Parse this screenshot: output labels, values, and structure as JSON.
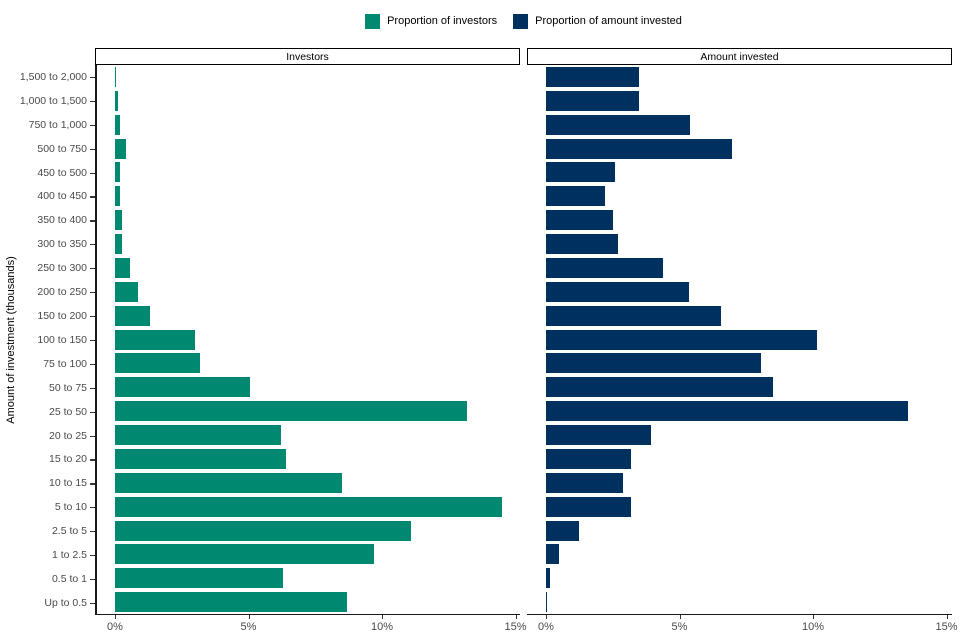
{
  "y_axis_title": "Amount of investment (thousands)",
  "legend": [
    {
      "label": "Proportion of investors",
      "color": "#008970"
    },
    {
      "label": "Proportion of amount invested",
      "color": "#00305E"
    }
  ],
  "panels": [
    {
      "title": "Investors"
    },
    {
      "title": "Amount invested"
    }
  ],
  "chart_data": {
    "type": "bar",
    "orientation": "horizontal",
    "title": "",
    "xlabel": "",
    "ylabel": "Amount of investment (thousands)",
    "grid": false,
    "legend_position": "top-center",
    "facets": [
      "Investors",
      "Amount invested"
    ],
    "x_axis": {
      "ticks_percent": [
        0,
        5,
        10,
        15
      ],
      "tick_labels": [
        "0%",
        "5%",
        "10%",
        "15%"
      ],
      "range_percent": [
        0,
        15.2
      ]
    },
    "categories_top_to_bottom": [
      "1,500 to 2,000",
      "1,000 to 1,500",
      "750 to 1,000",
      "500 to 750",
      "450 to 500",
      "400 to 450",
      "350 to 400",
      "300 to 350",
      "250 to 300",
      "200 to 250",
      "150 to 200",
      "100 to 150",
      "75 to 100",
      "50 to 75",
      "25 to 50",
      "20 to 25",
      "15 to 20",
      "10 to 15",
      "5 to 10",
      "2.5 to 5",
      "1 to 2.5",
      "0.5 to 1",
      "Up to 0.5"
    ],
    "series": [
      {
        "name": "Proportion of investors",
        "facet": "Investors",
        "color": "#008970",
        "values_percent": [
          0.05,
          0.1,
          0.2,
          0.4,
          0.2,
          0.2,
          0.25,
          0.25,
          0.55,
          0.85,
          1.3,
          3.0,
          3.2,
          5.05,
          13.2,
          6.2,
          6.4,
          8.5,
          14.5,
          11.1,
          9.7,
          6.3,
          8.7
        ]
      },
      {
        "name": "Proportion of amount invested",
        "facet": "Amount invested",
        "color": "#00305E",
        "values_percent": [
          3.5,
          3.5,
          5.4,
          6.95,
          2.6,
          2.2,
          2.5,
          2.7,
          4.4,
          5.35,
          6.55,
          10.15,
          8.05,
          8.5,
          13.55,
          3.95,
          3.2,
          2.9,
          3.2,
          1.25,
          0.5,
          0.15,
          0.05
        ]
      }
    ]
  }
}
